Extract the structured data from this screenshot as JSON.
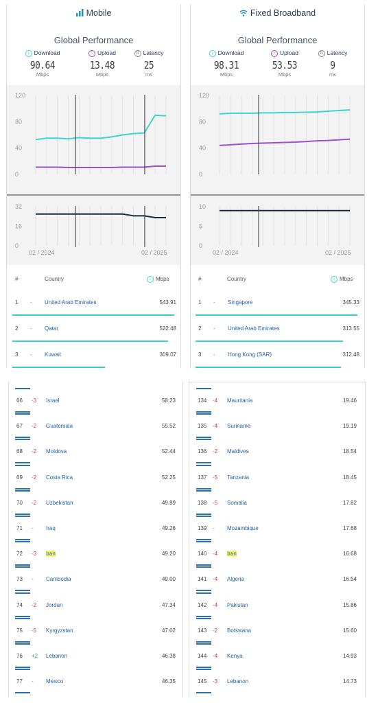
{
  "mobile": {
    "title": "Mobile",
    "subtitle": "Global Performance",
    "download_label": "Download",
    "upload_label": "Upload",
    "latency_label": "Latency",
    "download_value": "90.64",
    "upload_value": "13.48",
    "latency_value": "25",
    "mbps_unit": "Mbps",
    "ms_unit": "ms",
    "speed_ticks": [
      "120",
      "80",
      "40",
      "0"
    ],
    "latency_ticks": [
      "32",
      "16",
      "0"
    ],
    "date_start": "02 / 2024",
    "date_end": "02 / 2025",
    "download_series": [
      53,
      55,
      55,
      54,
      56,
      55,
      55,
      57,
      60,
      62,
      63,
      90,
      89
    ],
    "upload_series": [
      11,
      11,
      11,
      10.5,
      10.5,
      10.5,
      10.5,
      10.5,
      11,
      11,
      11,
      12.5,
      12.5
    ],
    "latency_series": [
      26,
      26,
      26,
      26,
      26,
      26,
      26,
      26,
      26,
      24.5,
      24.5,
      23,
      23
    ]
  },
  "fixed": {
    "title": "Fixed Broadband",
    "subtitle": "Global Performance",
    "download_label": "Download",
    "upload_label": "Upload",
    "latency_label": "Latency",
    "download_value": "98.31",
    "upload_value": "53.53",
    "latency_value": "9",
    "mbps_unit": "Mbps",
    "ms_unit": "ms",
    "speed_ticks": [
      "120",
      "80",
      "40",
      "0"
    ],
    "latency_ticks": [
      "10",
      "5",
      "0"
    ],
    "date_start": "02 / 2024",
    "date_end": "02 / 2025",
    "download_series": [
      92,
      93,
      93,
      93,
      93.5,
      93.5,
      94,
      94,
      94.5,
      95,
      96,
      97,
      98
    ],
    "upload_series": [
      44,
      45,
      46,
      47,
      47.5,
      48,
      48.5,
      49,
      50,
      51,
      51.5,
      52.5,
      53.5
    ],
    "latency_series": [
      9,
      9,
      9,
      9,
      9,
      9,
      9,
      9,
      9,
      9,
      9,
      9,
      9
    ]
  },
  "table_header": {
    "rank": "#",
    "country": "Country",
    "mbps": "Mbps"
  },
  "mobile_top": [
    {
      "rank": "1",
      "change": "-",
      "country": "United Arab Emirates",
      "speed": "543.91",
      "bar": 1.0
    },
    {
      "rank": "2",
      "change": "-",
      "country": "Qatar",
      "speed": "522.48",
      "bar": 0.96
    },
    {
      "rank": "3",
      "change": "-",
      "country": "Kuwait",
      "speed": "309.07",
      "bar": 0.57
    }
  ],
  "fixed_top": [
    {
      "rank": "1",
      "change": "-",
      "country": "Singapore",
      "speed": "345.33",
      "bar": 1.0
    },
    {
      "rank": "2",
      "change": "-",
      "country": "United Arab Emirates",
      "speed": "313.55",
      "bar": 0.91
    },
    {
      "rank": "3",
      "change": "-",
      "country": "Hong Kong (SAR)",
      "speed": "312.48",
      "bar": 0.9
    }
  ],
  "mobile_rows": [
    {
      "rank": "66",
      "change": "-3",
      "country": "Israel",
      "speed": "58.23",
      "highlight": false
    },
    {
      "rank": "67",
      "change": "-2",
      "country": "Guatemala",
      "speed": "55.52",
      "highlight": false
    },
    {
      "rank": "68",
      "change": "-2",
      "country": "Moldova",
      "speed": "52.44",
      "highlight": false
    },
    {
      "rank": "69",
      "change": "-2",
      "country": "Costa Rica",
      "speed": "52.25",
      "highlight": false
    },
    {
      "rank": "70",
      "change": "-2",
      "country": "Uzbekistan",
      "speed": "49.89",
      "highlight": false
    },
    {
      "rank": "71",
      "change": "-",
      "country": "Iraq",
      "speed": "49.26",
      "highlight": false
    },
    {
      "rank": "72",
      "change": "-3",
      "country": "Iran",
      "speed": "49.20",
      "highlight": true
    },
    {
      "rank": "73",
      "change": "-",
      "country": "Cambodia",
      "speed": "49.00",
      "highlight": false
    },
    {
      "rank": "74",
      "change": "-2",
      "country": "Jordan",
      "speed": "47.34",
      "highlight": false
    },
    {
      "rank": "75",
      "change": "-5",
      "country": "Kyrgyzstan",
      "speed": "47.02",
      "highlight": false
    },
    {
      "rank": "76",
      "change": "+2",
      "country": "Lebanon",
      "speed": "46.38",
      "highlight": false
    },
    {
      "rank": "77",
      "change": "-",
      "country": "Mexico",
      "speed": "46.35",
      "highlight": false
    }
  ],
  "fixed_rows": [
    {
      "rank": "134",
      "change": "-4",
      "country": "Mauritania",
      "speed": "19.46",
      "highlight": false
    },
    {
      "rank": "135",
      "change": "-4",
      "country": "Suriname",
      "speed": "19.19",
      "highlight": false
    },
    {
      "rank": "136",
      "change": "-2",
      "country": "Maldives",
      "speed": "18.54",
      "highlight": false
    },
    {
      "rank": "137",
      "change": "-5",
      "country": "Tanzania",
      "speed": "18.45",
      "highlight": false
    },
    {
      "rank": "138",
      "change": "-5",
      "country": "Somalia",
      "speed": "17.82",
      "highlight": false
    },
    {
      "rank": "139",
      "change": "-",
      "country": "Mozambique",
      "speed": "17.68",
      "highlight": false
    },
    {
      "rank": "140",
      "change": "-4",
      "country": "Iran",
      "speed": "16.68",
      "highlight": true
    },
    {
      "rank": "141",
      "change": "-4",
      "country": "Algeria",
      "speed": "16.54",
      "highlight": false
    },
    {
      "rank": "142",
      "change": "-4",
      "country": "Pakistan",
      "speed": "15.86",
      "highlight": false
    },
    {
      "rank": "143",
      "change": "-2",
      "country": "Botswana",
      "speed": "15.60",
      "highlight": false
    },
    {
      "rank": "144",
      "change": "-4",
      "country": "Kenya",
      "speed": "14.93",
      "highlight": false
    },
    {
      "rank": "145",
      "change": "-3",
      "country": "Lebanon",
      "speed": "14.73",
      "highlight": false
    }
  ],
  "colors": {
    "download": "#3dd5cf",
    "upload": "#9b4fd1",
    "latency": "#1d2b3a",
    "country_link": "#1f63a6",
    "neg_change": "#d43a3a",
    "pos_change": "#3a9a3a",
    "highlight": "#fff36a"
  }
}
